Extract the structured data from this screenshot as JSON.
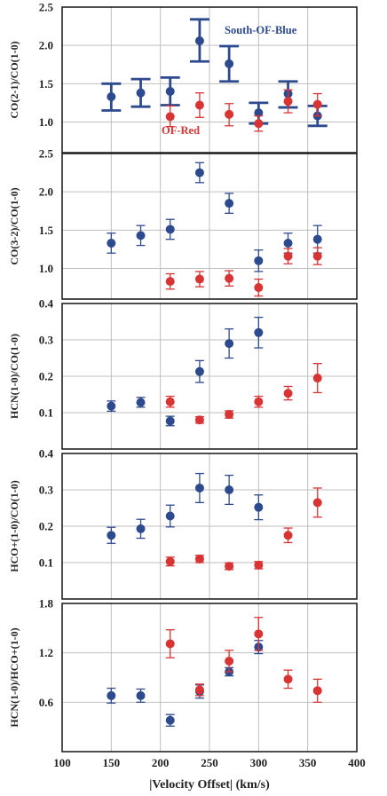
{
  "colors": {
    "blue": "#2E4A8E",
    "red": "#D93434",
    "grid": "#BFBFBF",
    "frame": "#222222"
  },
  "xlabel": "|Velocity Offset| (km/s)",
  "xlim": [
    100,
    400
  ],
  "xticks": [
    100,
    150,
    200,
    250,
    300,
    350,
    400
  ],
  "chart_data": [
    {
      "type": "scatter",
      "ylabel": "CO(2-1)/CO(1-0)",
      "ylim": [
        0.6,
        2.5
      ],
      "yticks": [
        "1.0",
        "1.5",
        "2.0",
        "2.5"
      ],
      "grid": true,
      "annotations": [
        {
          "text": "South-OF-Blue",
          "series": "blue"
        },
        {
          "text": "OF-Red",
          "series": "red"
        }
      ],
      "series": [
        {
          "color": "blue",
          "marker": "errorbar-only",
          "points": [
            {
              "x": 150,
              "y": 1.33,
              "lo": 1.15,
              "hi": 1.5
            },
            {
              "x": 180,
              "y": 1.38,
              "lo": 1.2,
              "hi": 1.56
            },
            {
              "x": 210,
              "y": 1.4,
              "lo": 1.22,
              "hi": 1.58
            },
            {
              "x": 240,
              "y": 2.06,
              "lo": 1.79,
              "hi": 2.34
            },
            {
              "x": 270,
              "y": 1.76,
              "lo": 1.53,
              "hi": 1.99
            },
            {
              "x": 300,
              "y": 1.12,
              "lo": 0.98,
              "hi": 1.25
            },
            {
              "x": 330,
              "y": 1.37,
              "lo": 1.19,
              "hi": 1.53
            },
            {
              "x": 360,
              "y": 1.08,
              "lo": 0.95,
              "hi": 1.21
            }
          ]
        },
        {
          "color": "red",
          "marker": "circle",
          "points": [
            {
              "x": 210,
              "y": 1.07,
              "lo": 0.94,
              "hi": 1.21
            },
            {
              "x": 240,
              "y": 1.22,
              "lo": 1.06,
              "hi": 1.38
            },
            {
              "x": 270,
              "y": 1.1,
              "lo": 0.95,
              "hi": 1.24
            },
            {
              "x": 300,
              "y": 0.98,
              "lo": 0.88,
              "hi": 1.08
            },
            {
              "x": 330,
              "y": 1.27,
              "lo": 1.12,
              "hi": 1.42
            },
            {
              "x": 360,
              "y": 1.23,
              "lo": 1.08,
              "hi": 1.37
            }
          ]
        }
      ]
    },
    {
      "type": "scatter",
      "ylabel": "CO(3-2)/CO(1-0)",
      "ylim": [
        0.6,
        2.5
      ],
      "yticks": [
        "1.0",
        "1.5",
        "2.0",
        "2.5"
      ],
      "grid": true,
      "series": [
        {
          "color": "blue",
          "marker": "circle",
          "points": [
            {
              "x": 150,
              "y": 1.33,
              "lo": 1.2,
              "hi": 1.46
            },
            {
              "x": 180,
              "y": 1.43,
              "lo": 1.3,
              "hi": 1.56
            },
            {
              "x": 210,
              "y": 1.51,
              "lo": 1.38,
              "hi": 1.64
            },
            {
              "x": 240,
              "y": 2.25,
              "lo": 2.12,
              "hi": 2.38
            },
            {
              "x": 270,
              "y": 1.85,
              "lo": 1.72,
              "hi": 1.98
            },
            {
              "x": 300,
              "y": 1.1,
              "lo": 0.96,
              "hi": 1.24
            },
            {
              "x": 330,
              "y": 1.33,
              "lo": 1.2,
              "hi": 1.46
            },
            {
              "x": 360,
              "y": 1.38,
              "lo": 1.2,
              "hi": 1.56
            }
          ]
        },
        {
          "color": "red",
          "marker": "circle",
          "points": [
            {
              "x": 210,
              "y": 0.83,
              "lo": 0.73,
              "hi": 0.93
            },
            {
              "x": 240,
              "y": 0.86,
              "lo": 0.76,
              "hi": 0.96
            },
            {
              "x": 270,
              "y": 0.87,
              "lo": 0.77,
              "hi": 0.97
            },
            {
              "x": 300,
              "y": 0.75,
              "lo": 0.64,
              "hi": 0.86
            },
            {
              "x": 330,
              "y": 1.16,
              "lo": 1.06,
              "hi": 1.26
            },
            {
              "x": 360,
              "y": 1.16,
              "lo": 1.05,
              "hi": 1.27
            }
          ]
        }
      ]
    },
    {
      "type": "scatter",
      "ylabel": "HCN(1-0)/CO(1-0)",
      "ylim": [
        0.0,
        0.4
      ],
      "yticks": [
        "0.1",
        "0.2",
        "0.3",
        "0.4"
      ],
      "grid": true,
      "series": [
        {
          "color": "blue",
          "marker": "circle",
          "points": [
            {
              "x": 150,
              "y": 0.118,
              "lo": 0.104,
              "hi": 0.132
            },
            {
              "x": 180,
              "y": 0.128,
              "lo": 0.115,
              "hi": 0.142
            },
            {
              "x": 210,
              "y": 0.077,
              "lo": 0.064,
              "hi": 0.09
            },
            {
              "x": 240,
              "y": 0.213,
              "lo": 0.183,
              "hi": 0.243
            },
            {
              "x": 270,
              "y": 0.29,
              "lo": 0.25,
              "hi": 0.33
            },
            {
              "x": 300,
              "y": 0.32,
              "lo": 0.278,
              "hi": 0.362
            }
          ]
        },
        {
          "color": "red",
          "marker": "circle",
          "points": [
            {
              "x": 210,
              "y": 0.13,
              "lo": 0.115,
              "hi": 0.145
            },
            {
              "x": 240,
              "y": 0.08,
              "lo": 0.071,
              "hi": 0.089
            },
            {
              "x": 270,
              "y": 0.095,
              "lo": 0.085,
              "hi": 0.105
            },
            {
              "x": 300,
              "y": 0.13,
              "lo": 0.115,
              "hi": 0.145
            },
            {
              "x": 330,
              "y": 0.153,
              "lo": 0.135,
              "hi": 0.172
            },
            {
              "x": 360,
              "y": 0.195,
              "lo": 0.155,
              "hi": 0.235
            }
          ]
        }
      ]
    },
    {
      "type": "scatter",
      "ylabel": "HCO+(1-0)/CO(1-0)",
      "ylim": [
        0.0,
        0.4
      ],
      "yticks": [
        "0.1",
        "0.2",
        "0.3",
        "0.4"
      ],
      "grid": true,
      "series": [
        {
          "color": "blue",
          "marker": "circle",
          "points": [
            {
              "x": 150,
              "y": 0.175,
              "lo": 0.153,
              "hi": 0.197
            },
            {
              "x": 180,
              "y": 0.193,
              "lo": 0.167,
              "hi": 0.219
            },
            {
              "x": 210,
              "y": 0.228,
              "lo": 0.198,
              "hi": 0.258
            },
            {
              "x": 240,
              "y": 0.305,
              "lo": 0.265,
              "hi": 0.345
            },
            {
              "x": 270,
              "y": 0.3,
              "lo": 0.26,
              "hi": 0.34
            },
            {
              "x": 300,
              "y": 0.252,
              "lo": 0.218,
              "hi": 0.286
            }
          ]
        },
        {
          "color": "red",
          "marker": "circle",
          "points": [
            {
              "x": 210,
              "y": 0.103,
              "lo": 0.091,
              "hi": 0.115
            },
            {
              "x": 240,
              "y": 0.11,
              "lo": 0.1,
              "hi": 0.12
            },
            {
              "x": 270,
              "y": 0.09,
              "lo": 0.081,
              "hi": 0.099
            },
            {
              "x": 300,
              "y": 0.093,
              "lo": 0.083,
              "hi": 0.103
            },
            {
              "x": 330,
              "y": 0.175,
              "lo": 0.155,
              "hi": 0.195
            },
            {
              "x": 360,
              "y": 0.265,
              "lo": 0.225,
              "hi": 0.305
            }
          ]
        }
      ]
    },
    {
      "type": "scatter",
      "ylabel": "HCN(1-0)/HCO+(1-0)",
      "ylim": [
        0.0,
        1.8
      ],
      "yticks": [
        "0.6",
        "1.2",
        "1.8"
      ],
      "grid": true,
      "series": [
        {
          "color": "blue",
          "marker": "circle",
          "points": [
            {
              "x": 150,
              "y": 0.68,
              "lo": 0.59,
              "hi": 0.77
            },
            {
              "x": 180,
              "y": 0.68,
              "lo": 0.6,
              "hi": 0.76
            },
            {
              "x": 210,
              "y": 0.38,
              "lo": 0.31,
              "hi": 0.45
            },
            {
              "x": 240,
              "y": 0.73,
              "lo": 0.65,
              "hi": 0.81
            },
            {
              "x": 270,
              "y": 0.97,
              "lo": 0.92,
              "hi": 1.02
            },
            {
              "x": 300,
              "y": 1.27,
              "lo": 1.19,
              "hi": 1.35
            }
          ]
        },
        {
          "color": "red",
          "marker": "circle",
          "points": [
            {
              "x": 210,
              "y": 1.31,
              "lo": 1.14,
              "hi": 1.48
            },
            {
              "x": 240,
              "y": 0.75,
              "lo": 0.68,
              "hi": 0.82
            },
            {
              "x": 270,
              "y": 1.1,
              "lo": 0.97,
              "hi": 1.23
            },
            {
              "x": 300,
              "y": 1.43,
              "lo": 1.23,
              "hi": 1.63
            },
            {
              "x": 330,
              "y": 0.88,
              "lo": 0.77,
              "hi": 0.99
            },
            {
              "x": 360,
              "y": 0.74,
              "lo": 0.6,
              "hi": 0.88
            }
          ]
        }
      ]
    }
  ]
}
